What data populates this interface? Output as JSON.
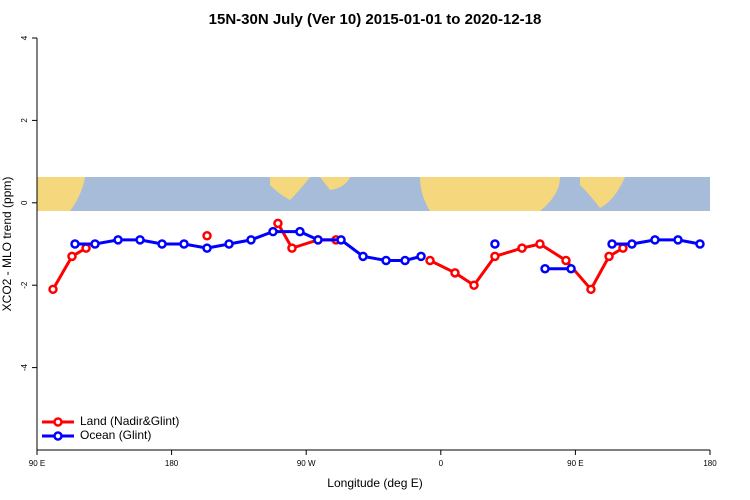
{
  "chart_data": {
    "type": "line",
    "title": "15N-30N July (Ver 10)   2015-01-01 to 2020-12-18",
    "xlabel": "Longitude (deg E)",
    "ylabel": "XCO2 - MLO trend (ppm)",
    "xlim": [
      90,
      540
    ],
    "xticks": [
      {
        "value": 90,
        "label": "90 E"
      },
      180,
      {
        "value": 270,
        "label": "90 W"
      },
      {
        "value": 360,
        "label": "0"
      },
      {
        "value": 450,
        "label": "90 E"
      },
      {
        "value": 540,
        "label": "180"
      }
    ],
    "ylim": [
      -6,
      4
    ],
    "yticks": [
      -4,
      -2,
      0,
      2,
      4
    ],
    "legend": "bottomleft",
    "series": [
      {
        "name": "Land (Nadir&Glint)",
        "color": "#ff0000",
        "x": [
          100.7,
          113.4,
          122.8,
          null,
          203.7,
          null,
          251.1,
          260.5,
          277.9,
          289.9,
          null,
          352.8,
          369.5,
          382.2,
          396.2,
          414.3,
          426.3,
          443.7,
          460.4,
          472.5,
          481.8
        ],
        "values": [
          -2.1,
          -1.3,
          -1.1,
          null,
          -0.8,
          null,
          -0.5,
          -1.1,
          -0.9,
          -0.9,
          null,
          -1.4,
          -1.7,
          -2.0,
          -1.3,
          -1.1,
          -1.0,
          -1.4,
          -2.1,
          -1.3,
          -1.1
        ]
      },
      {
        "name": "Ocean (Glint)",
        "color": "#0000ff",
        "x": [
          115.4,
          128.8,
          144.2,
          158.9,
          173.6,
          188.3,
          203.7,
          218.4,
          233.1,
          247.8,
          265.8,
          277.9,
          293.3,
          308.0,
          323.4,
          336.1,
          346.8,
          null,
          396.2,
          null,
          429.7,
          447.1,
          null,
          474.5,
          487.8,
          503.2,
          518.6,
          533.3
        ],
        "values": [
          -1.0,
          -1.0,
          -0.9,
          -0.9,
          -1.0,
          -1.0,
          -1.1,
          -1.0,
          -0.9,
          -0.7,
          -0.7,
          -0.9,
          -0.9,
          -1.3,
          -1.4,
          -1.4,
          -1.3,
          null,
          -1.0,
          null,
          -1.6,
          -1.6,
          null,
          -1.0,
          -1.0,
          -0.9,
          -0.9,
          -1.0
        ]
      }
    ]
  }
}
